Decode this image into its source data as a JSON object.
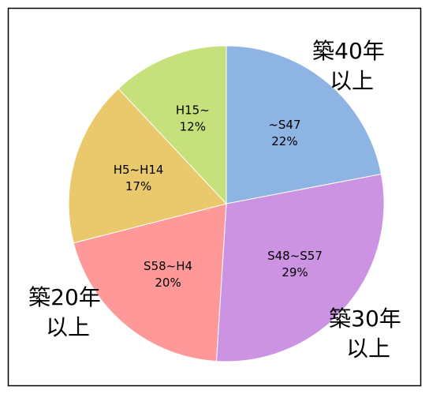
{
  "chart_data": {
    "type": "pie",
    "categories": [
      "~S47",
      "S48~S57",
      "S58~H4",
      "H5~H14",
      "H15~"
    ],
    "values": [
      22,
      29,
      20,
      17,
      12
    ],
    "value_labels": [
      "22%",
      "29%",
      "20%",
      "17%",
      "12%"
    ],
    "colors": [
      "#8db4e2",
      "#cc93e3",
      "#ff9999",
      "#e9c96c",
      "#c6e07b"
    ],
    "annotations": [
      {
        "lines": [
          "築40年",
          "以上"
        ]
      },
      {
        "lines": [
          "築30年",
          "以上"
        ]
      },
      {
        "lines": [
          "築20年",
          "以上"
        ]
      }
    ]
  }
}
